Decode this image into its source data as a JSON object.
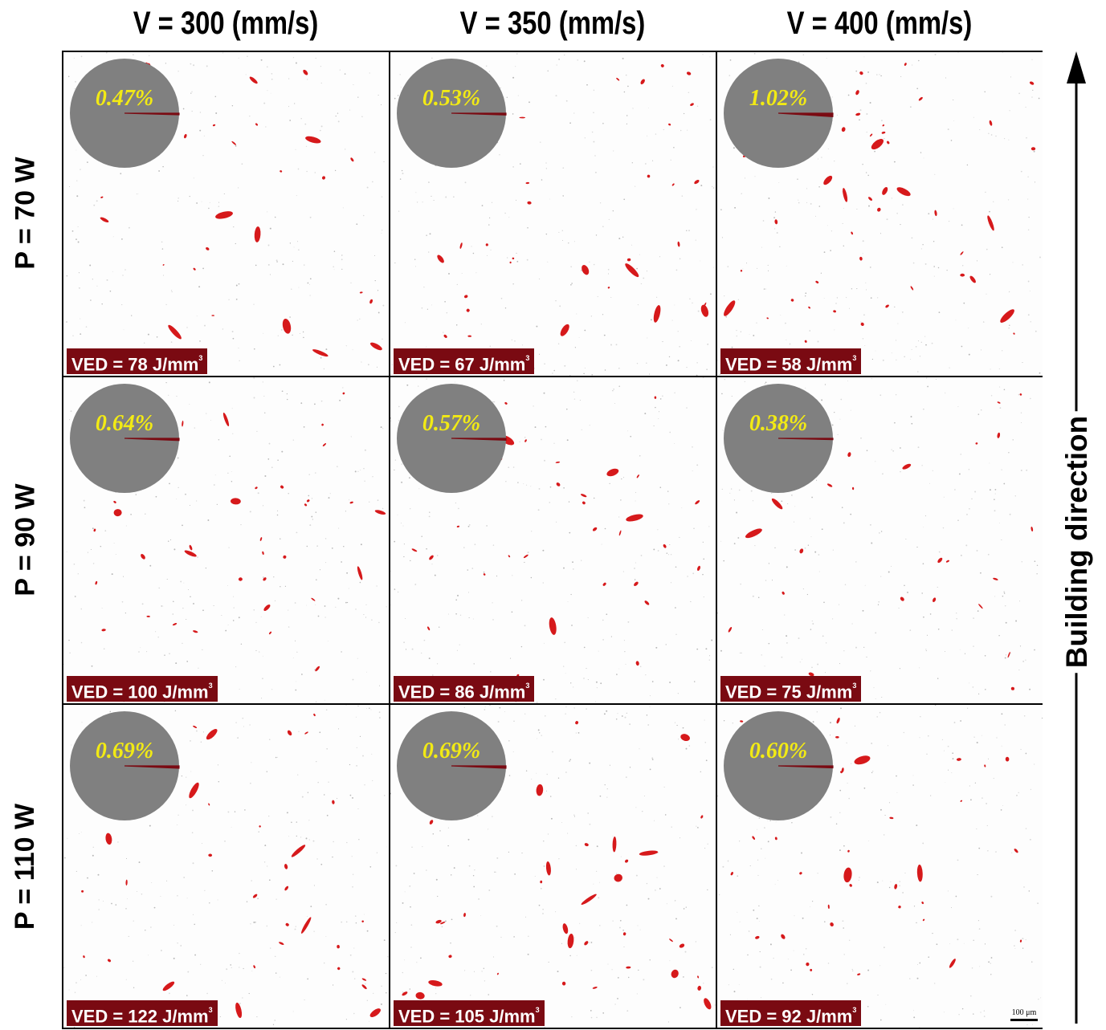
{
  "columns": [
    "V = 300 (mm/s)",
    "V = 350 (mm/s)",
    "V = 400 (mm/s)"
  ],
  "rows": [
    "P = 70 W",
    "P = 90 W",
    "P = 110 W"
  ],
  "panels": [
    [
      {
        "porosity": "0.47%",
        "porosity_value": 0.47,
        "ved": "VED = 78 J/mm",
        "ved_sup": "3"
      },
      {
        "porosity": "0.53%",
        "porosity_value": 0.53,
        "ved": "VED = 67 J/mm",
        "ved_sup": "3"
      },
      {
        "porosity": "1.02%",
        "porosity_value": 1.02,
        "ved": "VED = 58 J/mm",
        "ved_sup": "3"
      }
    ],
    [
      {
        "porosity": "0.64%",
        "porosity_value": 0.64,
        "ved": "VED = 100 J/mm",
        "ved_sup": "3"
      },
      {
        "porosity": "0.57%",
        "porosity_value": 0.57,
        "ved": "VED = 86 J/mm",
        "ved_sup": "3"
      },
      {
        "porosity": "0.38%",
        "porosity_value": 0.38,
        "ved": "VED = 75 J/mm",
        "ved_sup": "3"
      }
    ],
    [
      {
        "porosity": "0.69%",
        "porosity_value": 0.69,
        "ved": "VED = 122 J/mm",
        "ved_sup": "3"
      },
      {
        "porosity": "0.69%",
        "porosity_value": 0.69,
        "ved": "VED = 105 J/mm",
        "ved_sup": "3"
      },
      {
        "porosity": "0.60%",
        "porosity_value": 0.6,
        "ved": "VED = 92 J/mm",
        "ved_sup": "3"
      }
    ]
  ],
  "scale_bar": "100 μm",
  "direction_label": "Building direction",
  "colors": {
    "pie_dense": "#808080",
    "pore": "#d6191b",
    "pore_slice": "#7a0a12",
    "label_bg": "#7a0a12",
    "percent_text": "#f2ea14"
  }
}
